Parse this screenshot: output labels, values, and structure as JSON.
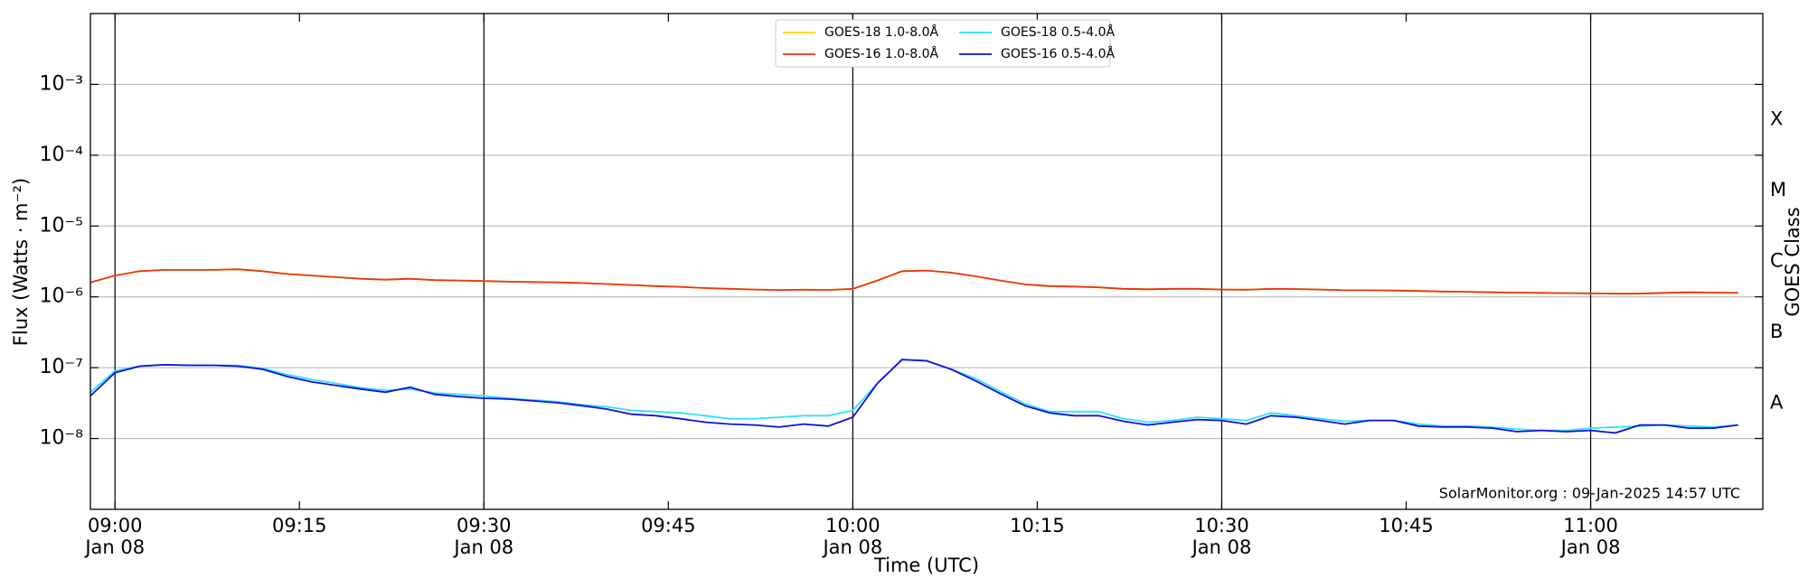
{
  "chart_data": {
    "type": "line",
    "xlabel": "Time (UTC)",
    "ylabel": "Flux (Watts · m⁻²)",
    "y2label": "GOES Class",
    "annotation": "SolarMonitor.org : 09-Jan-2025 14:57 UTC",
    "yscale": "log",
    "grid": true,
    "legend": "upper center",
    "x": [
      "Jan 08 08:58",
      "Jan 08 09:00",
      "Jan 08 09:02",
      "Jan 08 09:04",
      "Jan 08 09:06",
      "Jan 08 09:08",
      "Jan 08 09:10",
      "Jan 08 09:12",
      "Jan 08 09:14",
      "Jan 08 09:16",
      "Jan 08 09:18",
      "Jan 08 09:20",
      "Jan 08 09:22",
      "Jan 08 09:24",
      "Jan 08 09:26",
      "Jan 08 09:28",
      "Jan 08 09:30",
      "Jan 08 09:32",
      "Jan 08 09:34",
      "Jan 08 09:36",
      "Jan 08 09:38",
      "Jan 08 09:40",
      "Jan 08 09:42",
      "Jan 08 09:44",
      "Jan 08 09:46",
      "Jan 08 09:48",
      "Jan 08 09:50",
      "Jan 08 09:52",
      "Jan 08 09:54",
      "Jan 08 09:56",
      "Jan 08 09:58",
      "Jan 08 10:00",
      "Jan 08 10:02",
      "Jan 08 10:04",
      "Jan 08 10:06",
      "Jan 08 10:08",
      "Jan 08 10:10",
      "Jan 08 10:12",
      "Jan 08 10:14",
      "Jan 08 10:16",
      "Jan 08 10:18",
      "Jan 08 10:20",
      "Jan 08 10:22",
      "Jan 08 10:24",
      "Jan 08 10:26",
      "Jan 08 10:28",
      "Jan 08 10:30",
      "Jan 08 10:32",
      "Jan 08 10:34",
      "Jan 08 10:36",
      "Jan 08 10:38",
      "Jan 08 10:40",
      "Jan 08 10:42",
      "Jan 08 10:44",
      "Jan 08 10:46",
      "Jan 08 10:48",
      "Jan 08 10:50",
      "Jan 08 10:52",
      "Jan 08 10:54",
      "Jan 08 10:56",
      "Jan 08 10:58",
      "Jan 08 11:00",
      "Jan 08 11:02",
      "Jan 08 11:04",
      "Jan 08 11:06",
      "Jan 08 11:08",
      "Jan 08 11:10",
      "Jan 08 11:12"
    ],
    "series": [
      {
        "name": "GOES-18 1.0-8.0Å",
        "color": "#ffd700",
        "values": [
          1.6e-06,
          2e-06,
          2.3e-06,
          2.4e-06,
          2.4e-06,
          2.4e-06,
          2.45e-06,
          2.3e-06,
          2.1e-06,
          2e-06,
          1.9e-06,
          1.8e-06,
          1.75e-06,
          1.8e-06,
          1.72e-06,
          1.7e-06,
          1.67e-06,
          1.64e-06,
          1.62e-06,
          1.6e-06,
          1.57e-06,
          1.52e-06,
          1.47e-06,
          1.42e-06,
          1.38e-06,
          1.33e-06,
          1.3e-06,
          1.27e-06,
          1.25e-06,
          1.26e-06,
          1.25e-06,
          1.3e-06,
          1.7e-06,
          2.3e-06,
          2.35e-06,
          2.2e-06,
          1.95e-06,
          1.7e-06,
          1.5e-06,
          1.42e-06,
          1.4e-06,
          1.36e-06,
          1.3e-06,
          1.28e-06,
          1.3e-06,
          1.3e-06,
          1.27e-06,
          1.26e-06,
          1.3e-06,
          1.29e-06,
          1.27e-06,
          1.24e-06,
          1.24e-06,
          1.23e-06,
          1.21e-06,
          1.19e-06,
          1.18e-06,
          1.16e-06,
          1.15e-06,
          1.14e-06,
          1.13e-06,
          1.12e-06,
          1.11e-06,
          1.11e-06,
          1.14e-06,
          1.16e-06,
          1.15e-06,
          1.14e-06
        ]
      },
      {
        "name": "GOES-16 1.0-8.0Å",
        "color": "#e8380d",
        "values": [
          1.6e-06,
          2e-06,
          2.3e-06,
          2.4e-06,
          2.4e-06,
          2.4e-06,
          2.45e-06,
          2.3e-06,
          2.1e-06,
          2e-06,
          1.9e-06,
          1.8e-06,
          1.75e-06,
          1.8e-06,
          1.72e-06,
          1.7e-06,
          1.67e-06,
          1.64e-06,
          1.62e-06,
          1.6e-06,
          1.57e-06,
          1.52e-06,
          1.47e-06,
          1.42e-06,
          1.38e-06,
          1.33e-06,
          1.3e-06,
          1.27e-06,
          1.25e-06,
          1.26e-06,
          1.25e-06,
          1.3e-06,
          1.7e-06,
          2.3e-06,
          2.35e-06,
          2.2e-06,
          1.95e-06,
          1.7e-06,
          1.5e-06,
          1.42e-06,
          1.4e-06,
          1.36e-06,
          1.3e-06,
          1.28e-06,
          1.3e-06,
          1.3e-06,
          1.27e-06,
          1.26e-06,
          1.3e-06,
          1.29e-06,
          1.27e-06,
          1.24e-06,
          1.24e-06,
          1.23e-06,
          1.21e-06,
          1.19e-06,
          1.18e-06,
          1.16e-06,
          1.15e-06,
          1.14e-06,
          1.13e-06,
          1.12e-06,
          1.11e-06,
          1.11e-06,
          1.14e-06,
          1.16e-06,
          1.15e-06,
          1.14e-06
        ]
      },
      {
        "name": "GOES-18 0.5-4.0Å",
        "color": "#2de1fc",
        "values": [
          4.5e-08,
          9e-08,
          1.05e-07,
          1.1e-07,
          1.08e-07,
          1.08e-07,
          1.07e-07,
          9.8e-08,
          8e-08,
          6.8e-08,
          6e-08,
          5.2e-08,
          4.8e-08,
          5e-08,
          4.4e-08,
          4.2e-08,
          4e-08,
          3.7e-08,
          3.5e-08,
          3.3e-08,
          3e-08,
          2.8e-08,
          2.5e-08,
          2.4e-08,
          2.3e-08,
          2.1e-08,
          1.9e-08,
          1.9e-08,
          2e-08,
          2.1e-08,
          2.1e-08,
          2.5e-08,
          6e-08,
          1.3e-07,
          1.25e-07,
          9.5e-08,
          7e-08,
          4.6e-08,
          3.1e-08,
          2.4e-08,
          2.4e-08,
          2.4e-08,
          1.9e-08,
          1.7e-08,
          1.8e-08,
          2e-08,
          1.9e-08,
          1.8e-08,
          2.3e-08,
          2.1e-08,
          1.9e-08,
          1.75e-08,
          1.8e-08,
          1.8e-08,
          1.6e-08,
          1.5e-08,
          1.5e-08,
          1.45e-08,
          1.35e-08,
          1.3e-08,
          1.3e-08,
          1.4e-08,
          1.45e-08,
          1.5e-08,
          1.55e-08,
          1.5e-08,
          1.45e-08,
          1.55e-08
        ]
      },
      {
        "name": "GOES-16 0.5-4.0Å",
        "color": "#1010d8",
        "values": [
          4e-08,
          8.5e-08,
          1.05e-07,
          1.1e-07,
          1.08e-07,
          1.08e-07,
          1.05e-07,
          9.5e-08,
          7.5e-08,
          6.3e-08,
          5.6e-08,
          5e-08,
          4.5e-08,
          5.3e-08,
          4.2e-08,
          3.9e-08,
          3.7e-08,
          3.6e-08,
          3.4e-08,
          3.2e-08,
          2.9e-08,
          2.6e-08,
          2.2e-08,
          2.1e-08,
          1.9e-08,
          1.7e-08,
          1.6e-08,
          1.55e-08,
          1.45e-08,
          1.6e-08,
          1.5e-08,
          2e-08,
          6e-08,
          1.3e-07,
          1.25e-07,
          9.5e-08,
          6.5e-08,
          4.3e-08,
          2.9e-08,
          2.3e-08,
          2.1e-08,
          2.1e-08,
          1.75e-08,
          1.55e-08,
          1.7e-08,
          1.85e-08,
          1.8e-08,
          1.6e-08,
          2.1e-08,
          2e-08,
          1.8e-08,
          1.6e-08,
          1.8e-08,
          1.8e-08,
          1.5e-08,
          1.45e-08,
          1.45e-08,
          1.4e-08,
          1.25e-08,
          1.3e-08,
          1.25e-08,
          1.3e-08,
          1.2e-08,
          1.55e-08,
          1.55e-08,
          1.4e-08,
          1.4e-08,
          1.55e-08
        ]
      }
    ],
    "xlim": [
      "Jan 08 08:58",
      "Jan 08 11:14"
    ],
    "xticks": [
      {
        "value": "Jan 08 09:00",
        "label": "09:00\nJan 08"
      },
      {
        "value": "Jan 08 09:15",
        "label": "09:15"
      },
      {
        "value": "Jan 08 09:30",
        "label": "09:30\nJan 08"
      },
      {
        "value": "Jan 08 09:45",
        "label": "09:45"
      },
      {
        "value": "Jan 08 10:00",
        "label": "10:00\nJan 08"
      },
      {
        "value": "Jan 08 10:15",
        "label": "10:15"
      },
      {
        "value": "Jan 08 10:30",
        "label": "10:30\nJan 08"
      },
      {
        "value": "Jan 08 10:45",
        "label": "10:45"
      },
      {
        "value": "Jan 08 11:00",
        "label": "11:00\nJan 08"
      }
    ],
    "ylim": [
      1e-09,
      0.01
    ],
    "yticks": [
      {
        "value": 1e-08,
        "label": "10⁻⁸"
      },
      {
        "value": 1e-07,
        "label": "10⁻⁷"
      },
      {
        "value": 1e-06,
        "label": "10⁻⁶"
      },
      {
        "value": 1e-05,
        "label": "10⁻⁵"
      },
      {
        "value": 0.0001,
        "label": "10⁻⁴"
      },
      {
        "value": 0.001,
        "label": "10⁻³"
      }
    ],
    "y2lim": [
      1e-09,
      0.01
    ],
    "y2ticks": [
      {
        "value": 3.162e-08,
        "label": "A"
      },
      {
        "value": 3.162e-07,
        "label": "B"
      },
      {
        "value": 3.162e-06,
        "label": "C"
      },
      {
        "value": 3.162e-05,
        "label": "M"
      },
      {
        "value": 0.0003162,
        "label": "X"
      }
    ]
  }
}
